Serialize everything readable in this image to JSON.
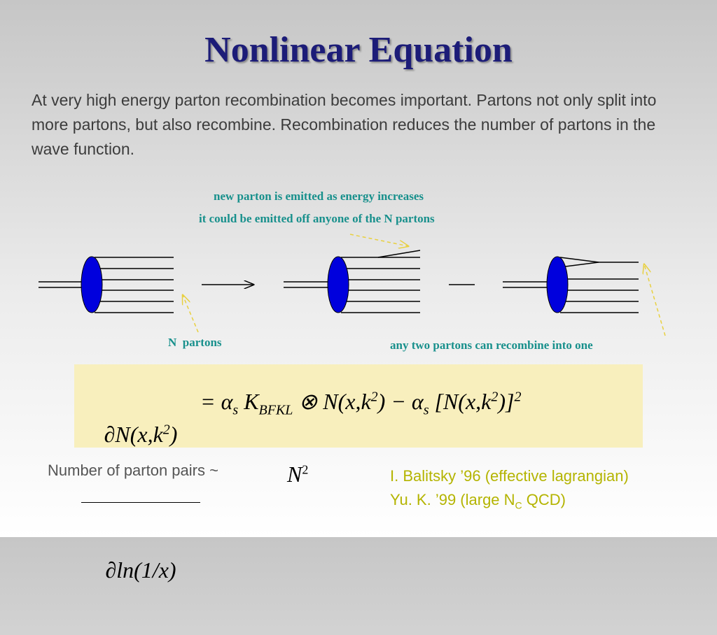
{
  "title": "Nonlinear Equation",
  "intro": "At very high energy parton recombination becomes important. Partons not only split into more partons, but also recombine. Recombination reduces the number of partons in the wave function.",
  "diagram": {
    "labels": [
      "new parton is emitted as energy increases",
      "it could be emitted off anyone of the N partons",
      "N  partons",
      "any two partons can recombine into one"
    ]
  },
  "equation": {
    "numerator": [
      {
        "text": "∂N(x,k"
      },
      {
        "sup": "2"
      },
      {
        "text": ")"
      }
    ],
    "denominator": [
      {
        "text": "∂ln(1/x)"
      }
    ],
    "rhs": [
      {
        "text": "= α"
      },
      {
        "sub": "s"
      },
      {
        "text": " K"
      },
      {
        "sub": "BFKL"
      },
      {
        "text": " ⊗ N(x,k"
      },
      {
        "sup": "2"
      },
      {
        "text": ") − α"
      },
      {
        "sub": "s"
      },
      {
        "text": " [N(x,k"
      },
      {
        "sup": "2"
      },
      {
        "text": ")]"
      },
      {
        "sup": "2"
      }
    ]
  },
  "pairs": {
    "label": "Number of parton pairs ~",
    "symbol": "N",
    "exponent": "2"
  },
  "references": {
    "first": "I. Balitsky ’96 (effective lagrangian)",
    "second": [
      {
        "text": "Yu. K. ’99 (large N"
      },
      {
        "sub": "C"
      },
      {
        "text": " QCD)"
      }
    ]
  }
}
